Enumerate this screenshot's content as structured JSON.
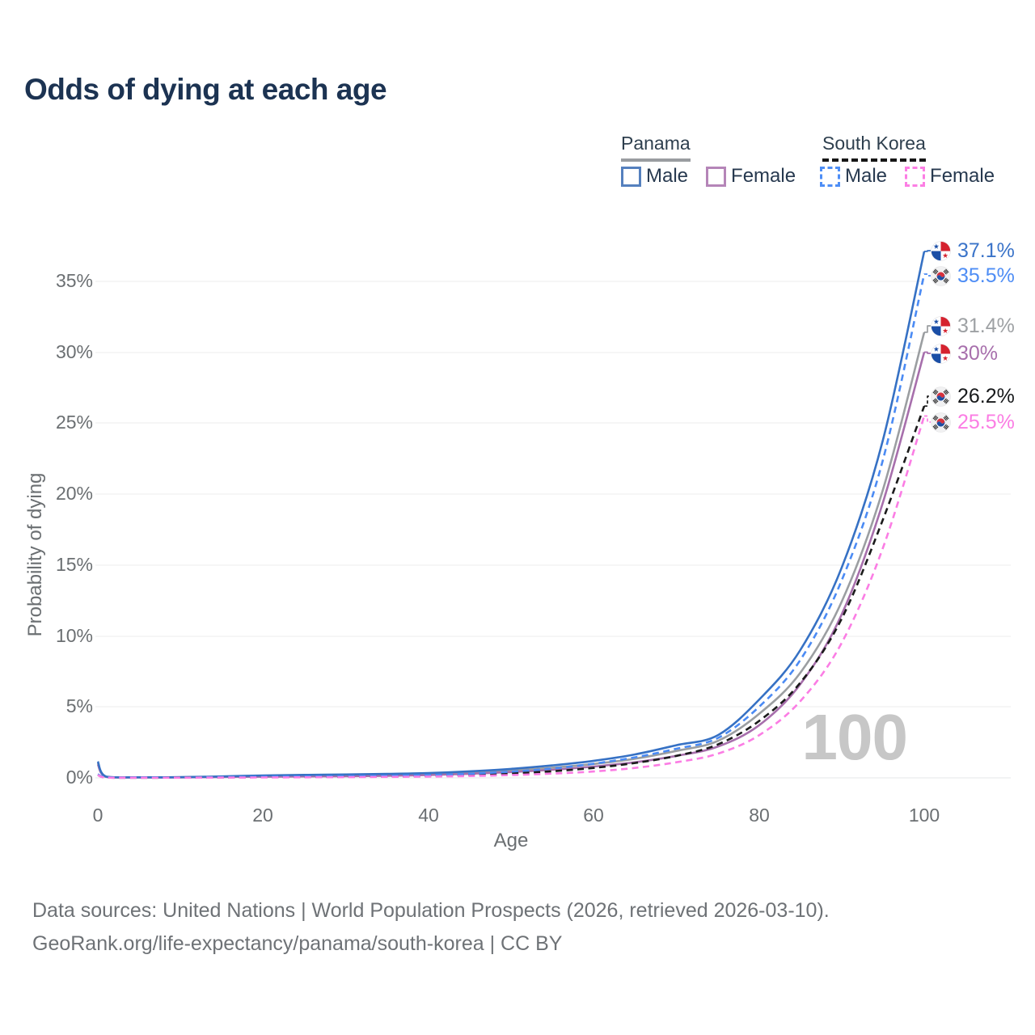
{
  "title": "Odds of dying at each age",
  "legend": {
    "panama": {
      "label": "Panama",
      "male": "Male",
      "female": "Female"
    },
    "south_korea": {
      "label": "South Korea",
      "male": "Male",
      "female": "Female"
    }
  },
  "watermark": "100",
  "footer": {
    "line1": "Data sources: United Nations | World Population Prospects (2026, retrieved 2026-03-10).",
    "line2": "GeoRank.org/life-expectancy/panama/south-korea | CC BY"
  },
  "chart_data": {
    "type": "line",
    "title": "Odds of dying at each age",
    "xlabel": "Age",
    "ylabel": "Probability of dying",
    "xlim": [
      0,
      100
    ],
    "ylim_pct": [
      0,
      37.5
    ],
    "grid": "horizontal",
    "legend_position": "top-right",
    "xticks": [
      "0",
      "20",
      "40",
      "60",
      "80",
      "100"
    ],
    "yticks": [
      "0%",
      "5%",
      "10%",
      "15%",
      "20%",
      "25%",
      "30%",
      "35%"
    ],
    "x": [
      0,
      1,
      5,
      10,
      15,
      20,
      25,
      30,
      35,
      40,
      45,
      50,
      55,
      60,
      65,
      70,
      75,
      80,
      85,
      90,
      95,
      100
    ],
    "series": [
      {
        "name": "Panama Male",
        "country": "Panama",
        "sex": "male",
        "style": "solid",
        "color": "#3671c4",
        "end_label": "37.1%",
        "values": [
          1.15,
          0.09,
          0.04,
          0.05,
          0.1,
          0.17,
          0.21,
          0.24,
          0.28,
          0.34,
          0.46,
          0.63,
          0.88,
          1.2,
          1.65,
          2.3,
          3.0,
          5.5,
          9.0,
          14.8,
          23.8,
          37.1
        ]
      },
      {
        "name": "South Korea Male",
        "country": "South Korea",
        "sex": "male",
        "style": "dashed",
        "color": "#4b8bf4",
        "end_label": "35.5%",
        "values": [
          0.25,
          0.04,
          0.02,
          0.02,
          0.05,
          0.08,
          0.1,
          0.12,
          0.15,
          0.2,
          0.29,
          0.44,
          0.66,
          1.0,
          1.45,
          2.05,
          2.8,
          5.0,
          8.3,
          13.9,
          22.4,
          35.5
        ]
      },
      {
        "name": "Panama Both sexes",
        "country": "Panama",
        "sex": "both",
        "style": "solid",
        "color": "#9b9ea1",
        "end_label": "31.4%",
        "values": [
          1.05,
          0.08,
          0.03,
          0.04,
          0.08,
          0.12,
          0.15,
          0.17,
          0.21,
          0.27,
          0.37,
          0.52,
          0.72,
          0.98,
          1.35,
          1.9,
          2.6,
          4.5,
          7.4,
          12.4,
          20.3,
          31.4
        ]
      },
      {
        "name": "Panama Female",
        "country": "Panama",
        "sex": "female",
        "style": "solid",
        "color": "#a76fac",
        "end_label": "30%",
        "values": [
          0.95,
          0.07,
          0.03,
          0.03,
          0.06,
          0.08,
          0.1,
          0.12,
          0.15,
          0.2,
          0.29,
          0.41,
          0.57,
          0.8,
          1.1,
          1.55,
          2.2,
          3.7,
          6.6,
          11.5,
          19.4,
          30.0
        ]
      },
      {
        "name": "South Korea Both sexes",
        "country": "South Korea",
        "sex": "both",
        "style": "dashed",
        "color": "#1b1b1b",
        "end_label": "26.2%",
        "values": [
          0.22,
          0.03,
          0.01,
          0.02,
          0.03,
          0.05,
          0.06,
          0.08,
          0.1,
          0.14,
          0.21,
          0.31,
          0.47,
          0.7,
          1.05,
          1.55,
          2.35,
          4.0,
          6.7,
          11.2,
          18.2,
          26.2
        ]
      },
      {
        "name": "South Korea Female",
        "country": "South Korea",
        "sex": "female",
        "style": "dashed",
        "color": "#fb7de4",
        "end_label": "25.5%",
        "values": [
          0.2,
          0.02,
          0.01,
          0.01,
          0.02,
          0.03,
          0.04,
          0.05,
          0.07,
          0.09,
          0.13,
          0.2,
          0.3,
          0.45,
          0.7,
          1.1,
          1.7,
          3.0,
          5.4,
          9.5,
          16.2,
          25.5
        ]
      }
    ],
    "age_marker": "100"
  }
}
